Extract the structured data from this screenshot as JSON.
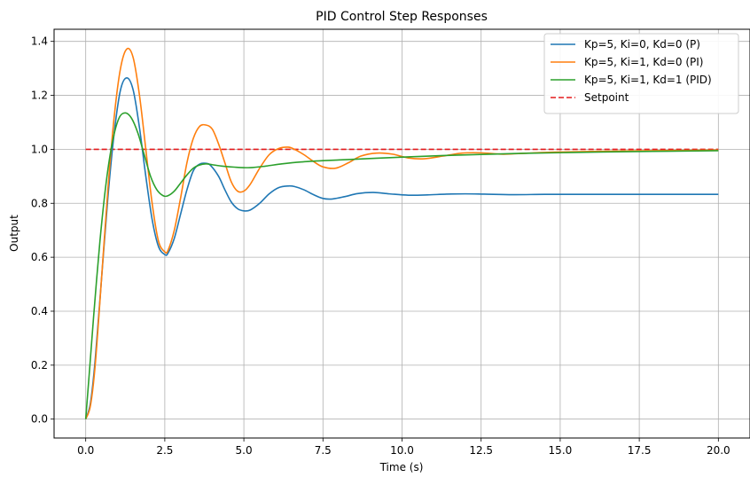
{
  "chart_data": {
    "type": "line",
    "title": "PID Control Step Responses",
    "xlabel": "Time (s)",
    "ylabel": "Output",
    "xlim": [
      -1.0,
      21.0
    ],
    "ylim": [
      -0.07,
      1.445
    ],
    "xticks": [
      0.0,
      2.5,
      5.0,
      7.5,
      10.0,
      12.5,
      15.0,
      17.5,
      20.0
    ],
    "xtick_labels": [
      "0.0",
      "2.5",
      "5.0",
      "7.5",
      "10.0",
      "12.5",
      "15.0",
      "17.5",
      "20.0"
    ],
    "yticks": [
      0.0,
      0.2,
      0.4,
      0.6,
      0.8,
      1.0,
      1.2,
      1.4
    ],
    "ytick_labels": [
      "0.0",
      "0.2",
      "0.4",
      "0.6",
      "0.8",
      "1.0",
      "1.2",
      "1.4"
    ],
    "grid": true,
    "legend_position": "top-right",
    "series": [
      {
        "name": "Kp=5, Ki=0, Kd=0 (P)",
        "color": "#1f77b4",
        "style": "solid",
        "x": [
          0,
          0.15,
          0.3,
          0.5,
          0.7,
          0.9,
          1.1,
          1.3,
          1.5,
          1.7,
          1.9,
          2.1,
          2.3,
          2.5,
          2.6,
          2.8,
          3.0,
          3.2,
          3.4,
          3.6,
          3.8,
          3.95,
          4.2,
          4.4,
          4.6,
          4.8,
          5.0,
          5.2,
          5.5,
          5.8,
          6.1,
          6.4,
          6.6,
          6.9,
          7.2,
          7.5,
          7.8,
          8.2,
          8.6,
          9.1,
          9.6,
          10.2,
          10.8,
          11.4,
          12.0,
          12.6,
          13.5,
          14.5,
          15.5,
          17,
          18.5,
          20
        ],
        "values": [
          0,
          0.06,
          0.22,
          0.52,
          0.82,
          1.06,
          1.22,
          1.265,
          1.22,
          1.08,
          0.9,
          0.74,
          0.64,
          0.61,
          0.615,
          0.67,
          0.76,
          0.85,
          0.92,
          0.945,
          0.948,
          0.94,
          0.9,
          0.85,
          0.805,
          0.78,
          0.772,
          0.775,
          0.8,
          0.835,
          0.858,
          0.864,
          0.862,
          0.85,
          0.832,
          0.818,
          0.816,
          0.825,
          0.836,
          0.84,
          0.835,
          0.83,
          0.831,
          0.834,
          0.835,
          0.834,
          0.832,
          0.833,
          0.833,
          0.833,
          0.833,
          0.833
        ]
      },
      {
        "name": "Kp=5, Ki=1, Kd=0 (PI)",
        "color": "#ff7f0e",
        "style": "solid",
        "x": [
          0,
          0.15,
          0.3,
          0.5,
          0.7,
          0.9,
          1.1,
          1.3,
          1.5,
          1.7,
          1.9,
          2.1,
          2.3,
          2.5,
          2.6,
          2.8,
          3.0,
          3.2,
          3.4,
          3.6,
          3.8,
          4.0,
          4.2,
          4.4,
          4.6,
          4.8,
          5.0,
          5.2,
          5.5,
          5.8,
          6.1,
          6.4,
          6.6,
          6.9,
          7.2,
          7.5,
          7.9,
          8.3,
          8.7,
          9.2,
          9.7,
          10.2,
          10.7,
          11.3,
          11.9,
          12.5,
          13.2,
          14.0,
          15.0,
          16.5,
          18.0,
          20
        ],
        "values": [
          0,
          0.05,
          0.2,
          0.52,
          0.85,
          1.12,
          1.3,
          1.372,
          1.34,
          1.2,
          1.0,
          0.8,
          0.66,
          0.62,
          0.625,
          0.7,
          0.82,
          0.95,
          1.04,
          1.085,
          1.09,
          1.075,
          1.02,
          0.95,
          0.88,
          0.845,
          0.845,
          0.87,
          0.93,
          0.98,
          1.003,
          1.008,
          1.0,
          0.98,
          0.955,
          0.935,
          0.93,
          0.95,
          0.975,
          0.986,
          0.982,
          0.968,
          0.965,
          0.975,
          0.986,
          0.987,
          0.982,
          0.986,
          0.99,
          0.993,
          0.995,
          0.997
        ]
      },
      {
        "name": "Kp=5, Ki=1, Kd=1 (PID)",
        "color": "#2ca02c",
        "style": "solid",
        "x": [
          0,
          0.1,
          0.25,
          0.45,
          0.65,
          0.85,
          1.05,
          1.25,
          1.45,
          1.65,
          1.85,
          2.05,
          2.25,
          2.45,
          2.6,
          2.8,
          3.0,
          3.2,
          3.4,
          3.6,
          3.8,
          4.0,
          4.3,
          4.7,
          5.2,
          5.7,
          6.2,
          6.8,
          7.5,
          8.3,
          9.2,
          10.2,
          11.3,
          12.5,
          13.8,
          15.2,
          16.8,
          18.4,
          20
        ],
        "values": [
          0,
          0.15,
          0.38,
          0.66,
          0.88,
          1.03,
          1.115,
          1.135,
          1.115,
          1.06,
          0.98,
          0.9,
          0.85,
          0.828,
          0.828,
          0.845,
          0.875,
          0.905,
          0.93,
          0.942,
          0.946,
          0.943,
          0.938,
          0.934,
          0.932,
          0.938,
          0.946,
          0.953,
          0.958,
          0.962,
          0.967,
          0.972,
          0.977,
          0.981,
          0.985,
          0.988,
          0.991,
          0.993,
          0.995
        ]
      },
      {
        "name": "Setpoint",
        "color": "#e31a1c",
        "style": "dashed",
        "x": [
          0,
          20
        ],
        "values": [
          1.0,
          1.0
        ]
      }
    ]
  }
}
